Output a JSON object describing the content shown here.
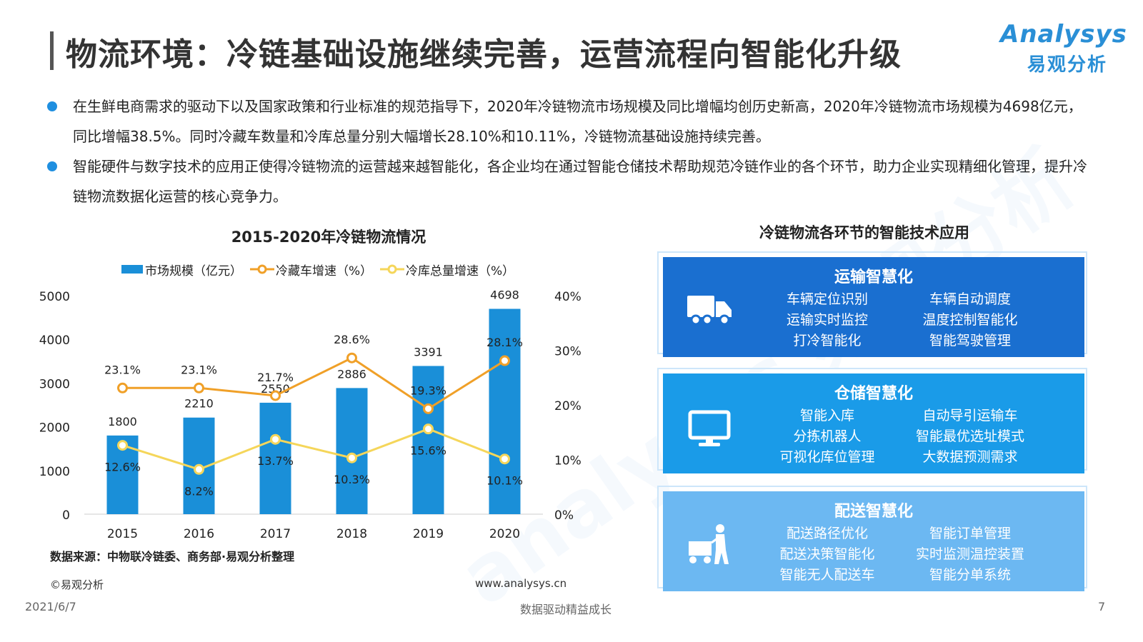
{
  "header": {
    "title": "物流环境：冷链基础设施继续完善，运营流程向智能化升级",
    "logo_en": "Analysys",
    "logo_cn": "易观分析"
  },
  "bullets": [
    {
      "text": "在生鲜电商需求的驱动下以及国家政策和行业标准的规范指导下，2020年冷链物流市场规模及同比增幅均创历史新高，2020年冷链物流市场规模为4698亿元，同比增幅38.5%。同时冷藏车数量和冷库总量分别大幅增长28.10%和10.11%，冷链物流基础设施持续完善。"
    },
    {
      "text": "智能硬件与数字技术的应用正使得冷链物流的运营越来越智能化，各企业均在通过智能仓储技术帮助规范冷链作业的各个环节，助力企业实现精细化管理，提升冷链物流数据化运营的核心竞争力。"
    }
  ],
  "chart_data": {
    "type": "bar",
    "title": "2015-2020年冷链物流情况",
    "categories": [
      "2015",
      "2016",
      "2017",
      "2018",
      "2019",
      "2020"
    ],
    "series": [
      {
        "name": "市场规模（亿元）",
        "type": "bar",
        "axis": "left",
        "values": [
          1800,
          2210,
          2550,
          2886,
          3391,
          4698
        ],
        "color": "#1a8fd8",
        "labels": [
          "1800",
          "2210",
          "2550",
          "2886",
          "3391",
          "4698"
        ]
      },
      {
        "name": "冷藏车增速（%）",
        "type": "line",
        "axis": "right",
        "values": [
          23.1,
          23.1,
          21.7,
          28.6,
          19.3,
          28.1
        ],
        "color": "#f0a028",
        "labels": [
          "23.1%",
          "23.1%",
          "21.7%",
          "28.6%",
          "19.3%",
          "28.1%"
        ]
      },
      {
        "name": "冷库总量增速（%）",
        "type": "line",
        "axis": "right",
        "values": [
          12.6,
          8.2,
          13.7,
          10.3,
          15.6,
          10.1
        ],
        "color": "#f5d65a",
        "labels": [
          "12.6%",
          "8.2%",
          "13.7%",
          "10.3%",
          "15.6%",
          "10.1%"
        ]
      }
    ],
    "ylim_left": [
      0,
      5000
    ],
    "ylim_right": [
      0,
      40
    ],
    "yticks_left": [
      "0",
      "1000",
      "2000",
      "3000",
      "4000",
      "5000"
    ],
    "yticks_right": [
      "0%",
      "10%",
      "20%",
      "30%",
      "40%"
    ],
    "legend_position": "top",
    "grid": false
  },
  "footer": {
    "source": "数据来源：中物联冷链委、商务部·易观分析整理",
    "copyright": "©易观分析",
    "url": "www.analysys.cn",
    "date": "2021/6/7",
    "slogan": "数据驱动精益成长",
    "page": "7"
  },
  "panel": {
    "title": "冷链物流各环节的智能技术应用",
    "cards": [
      {
        "title": "运输智慧化",
        "icon": "truck-icon",
        "color": "#1a6fd0",
        "left": [
          "车辆定位识别",
          "运输实时监控",
          "打冷智能化"
        ],
        "right": [
          "车辆自动调度",
          "温度控制智能化",
          "智能驾驶管理"
        ]
      },
      {
        "title": "仓储智慧化",
        "icon": "monitor-icon",
        "color": "#1a9be8",
        "left": [
          "智能入库",
          "分拣机器人",
          "可视化库位管理"
        ],
        "right": [
          "自动导引运输车",
          "智能最优选址模式",
          "大数据预测需求"
        ]
      },
      {
        "title": "配送智慧化",
        "icon": "delivery-person-icon",
        "color": "#6cb8f2",
        "left": [
          "配送路径优化",
          "配送决策智能化",
          "智能无人配送车"
        ],
        "right": [
          "智能订单管理",
          "实时监测温控装置",
          "智能分单系统"
        ]
      }
    ]
  }
}
